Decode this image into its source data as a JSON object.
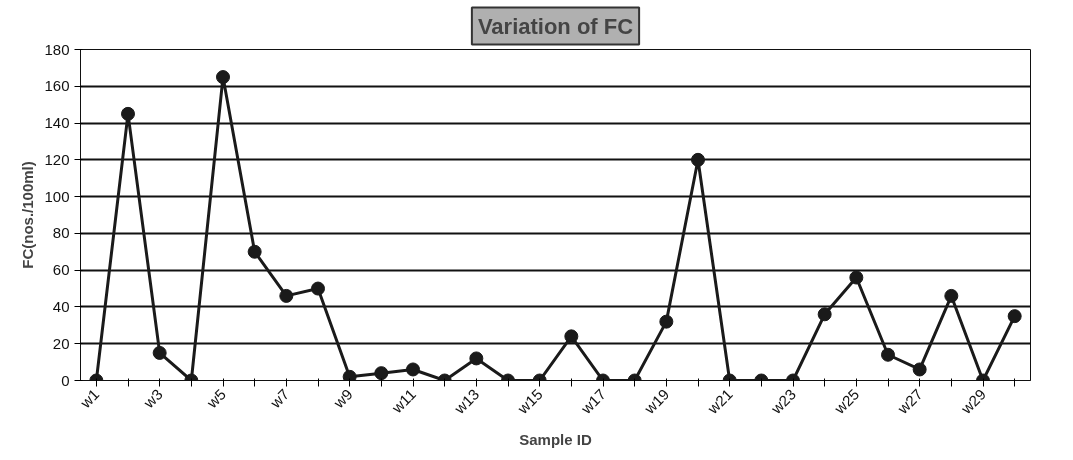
{
  "chart_data": {
    "type": "line",
    "title": "Variation of FC",
    "xlabel": "Sample ID",
    "ylabel": "FC(nos./100ml)",
    "categories": [
      "w1",
      null,
      "w3",
      null,
      "w5",
      null,
      "w7",
      null,
      "w9",
      null,
      "w11",
      null,
      "w13",
      null,
      "w15",
      null,
      "w17",
      null,
      "w19",
      null,
      "w21",
      null,
      "w23",
      null,
      "w25",
      null,
      "w27",
      null,
      "w29",
      null
    ],
    "series": [
      {
        "color": "#1a1a1a",
        "values": [
          0,
          145,
          15,
          0,
          165,
          70,
          46,
          50,
          2,
          4,
          6,
          0,
          12,
          0,
          0,
          24,
          0,
          0,
          32,
          120,
          0,
          0,
          0,
          36,
          56,
          14,
          6,
          46,
          0,
          35
        ]
      }
    ],
    "ylim": [
      0,
      180
    ],
    "yticks": [
      0,
      20,
      40,
      60,
      80,
      100,
      120,
      140,
      160,
      180
    ],
    "grid": "y",
    "marker": "circle",
    "line_style": "solid"
  }
}
